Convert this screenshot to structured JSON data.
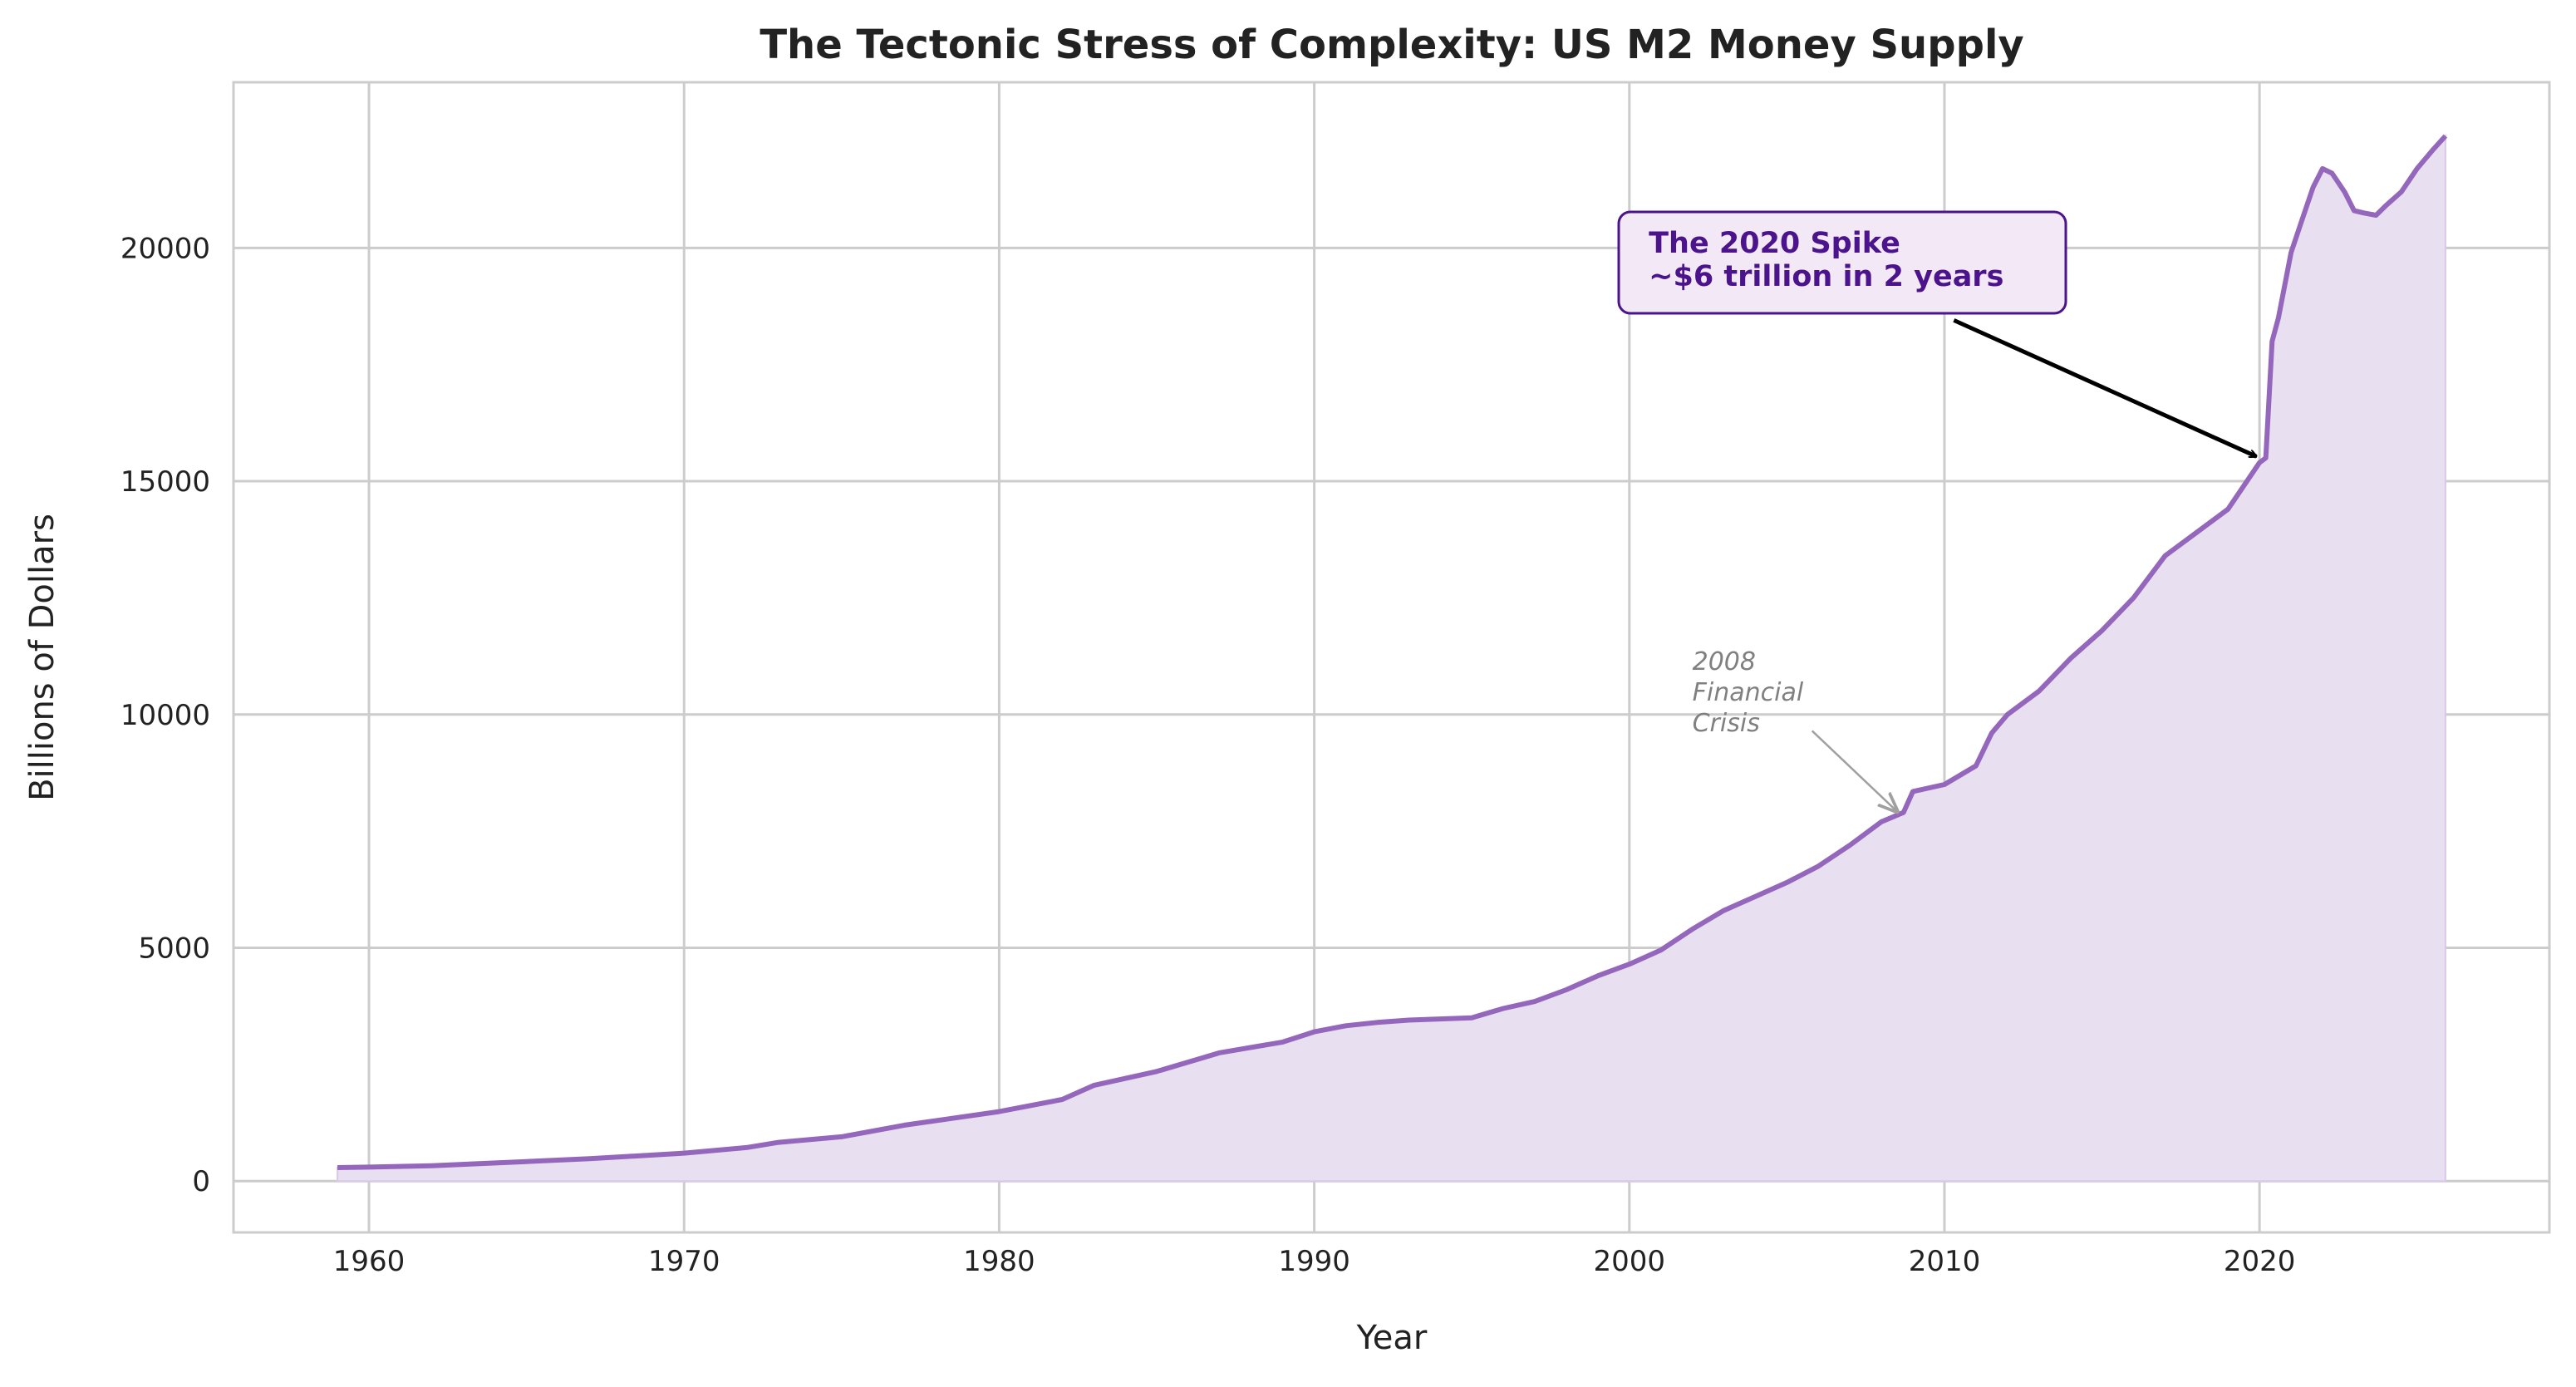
{
  "chart_data": {
    "type": "area",
    "title": "The Tectonic Stress of Complexity: US M2 Money Supply",
    "xlabel": "Year",
    "ylabel": "Billions of Dollars",
    "xlim": [
      1955.7,
      2029.2
    ],
    "ylim": [
      -1100,
      23550
    ],
    "grid": true,
    "line_color": "#9467bd",
    "fill_color": "#e8dff0",
    "x_ticks": [
      1960,
      1970,
      1980,
      1990,
      2000,
      2010,
      2020
    ],
    "y_ticks": [
      0,
      5000,
      10000,
      15000,
      20000
    ],
    "series": [
      {
        "x": [
          1959,
          1960,
          1962,
          1965,
          1967,
          1970,
          1972,
          1973,
          1975,
          1977,
          1980,
          1982,
          1983,
          1985,
          1987,
          1989,
          1990,
          1991,
          1992,
          1993,
          1995,
          1996,
          1997,
          1998,
          1999,
          2000,
          2001,
          2002,
          2003,
          2004,
          2005,
          2006,
          2007,
          2008,
          2008.7,
          2009,
          2010,
          2011,
          2011.5,
          2012,
          2013,
          2014,
          2015,
          2016,
          2017,
          2018,
          2019,
          2020.0,
          2020.2,
          2020.4,
          2020.6,
          2021.0,
          2021.3,
          2021.7,
          2022.0,
          2022.3,
          2022.7,
          2023.0,
          2023.3,
          2023.7,
          2024.0,
          2024.5,
          2025.0,
          2025.5,
          2025.9
        ],
        "y": [
          290,
          300,
          330,
          420,
          480,
          600,
          720,
          830,
          950,
          1200,
          1490,
          1750,
          2050,
          2350,
          2750,
          2980,
          3200,
          3330,
          3400,
          3450,
          3500,
          3700,
          3850,
          4100,
          4400,
          4650,
          4950,
          5400,
          5800,
          6100,
          6400,
          6750,
          7200,
          7700,
          7900,
          8350,
          8500,
          8900,
          9600,
          10000,
          10500,
          11200,
          11800,
          12500,
          13400,
          13900,
          14400,
          15400,
          15500,
          18000,
          18500,
          19900,
          20500,
          21300,
          21700,
          21600,
          21200,
          20800,
          20750,
          20700,
          20900,
          21200,
          21700,
          22100,
          22400
        ]
      }
    ],
    "annotations": [
      {
        "text_lines": [
          "The 2020 Spike",
          "~$6 trillion in 2 years"
        ],
        "color": "#4b148c",
        "box_fill": "#f3e8f5",
        "text_at": [
          2000.3,
          19100
        ],
        "arrow_from": [
          2010.3,
          18450
        ],
        "arrow_to": [
          2019.9,
          15530
        ]
      },
      {
        "text_lines": [
          "2008",
          "Financial",
          "Crisis"
        ],
        "color": "#808080",
        "text_at": [
          2002,
          10000
        ],
        "arrow_from": [
          2005.8,
          9650
        ],
        "arrow_to": [
          2008.5,
          7920
        ]
      }
    ]
  }
}
